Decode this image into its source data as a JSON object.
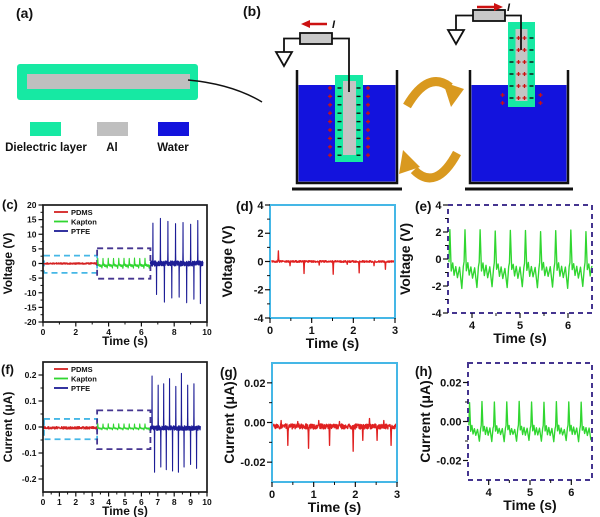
{
  "panel_a": {
    "label": "(a)",
    "legend": [
      {
        "label": "Dielectric layer",
        "color": "#16E9A3"
      },
      {
        "label": "Al",
        "color": "#BFBFBF"
      },
      {
        "label": "Water",
        "color": "#1313DD"
      }
    ]
  },
  "panel_b": {
    "label": "(b)",
    "current_label": "I",
    "colors": {
      "water": "#1313DD",
      "dielectric": "#16E9A3",
      "electrode_core": "#C4C4C4",
      "resistor_fill": "#C8C8C8",
      "cycle_arrow": "#D9991F",
      "current_arrow": "#CC1111",
      "positive_charge": "#CC1111",
      "negative_charge": "#111111",
      "outline": "#111111"
    },
    "left_charge_rows": 9,
    "right_charge_rows": 6,
    "right_submerged_rows": 2
  },
  "chart_data": [
    {
      "id": "c",
      "panel_label": "(c)",
      "type": "line",
      "style": "small",
      "xlabel": "Time (s)",
      "ylabel": "Voltage (V)",
      "xlim": [
        0,
        10
      ],
      "ylim": [
        -20,
        20
      ],
      "xticks": {
        "values": [
          0,
          2,
          4,
          6,
          8,
          10
        ],
        "labels": [
          "0",
          "2",
          "4",
          "6",
          "8",
          "10"
        ]
      },
      "yticks": {
        "values": [
          20,
          15,
          10,
          5,
          0,
          -5,
          -10,
          -15,
          -20
        ],
        "labels": [
          "20",
          "15",
          "10",
          "5",
          "0",
          "-5",
          "-10",
          "-15",
          "-20"
        ]
      },
      "frame": {
        "color": "#1a1a1a",
        "dash": false
      },
      "legend": {
        "entries": [
          {
            "name": "PDMS",
            "color": "#D42222"
          },
          {
            "name": "Kapton",
            "color": "#30D630"
          },
          {
            "name": "PTFE",
            "color": "#1D1D96"
          }
        ]
      },
      "boxes": [
        {
          "x": [
            0.06,
            3.3
          ],
          "y": [
            -3.2,
            2.7
          ],
          "color": "#45B7E6"
        },
        {
          "x": [
            3.3,
            6.55
          ],
          "y": [
            -5.2,
            5.2
          ],
          "color": "#453590"
        }
      ],
      "series": [
        {
          "name": "PDMS",
          "color": "#D42222",
          "gen": {
            "kind": "flat",
            "range": [
              0.04,
              3.28
            ],
            "base": 0,
            "noise": 0.28,
            "n": 300
          }
        },
        {
          "name": "Kapton",
          "color": "#30D630",
          "gen": {
            "kind": "periodic",
            "range": [
              3.32,
              6.52
            ],
            "period": 0.32,
            "up": 1.8,
            "down": 1.6,
            "base": 0
          }
        },
        {
          "name": "PTFE",
          "color": "#1D1D96",
          "gen": {
            "kind": "spikes",
            "range": [
              6.55,
              9.75
            ],
            "base": 0,
            "noise": 0.9,
            "n": 420,
            "spikes": [
              [
                6.7,
                13.8
              ],
              [
                6.92,
                -10.6
              ],
              [
                7.16,
                15.4
              ],
              [
                7.4,
                -13.2
              ],
              [
                7.62,
                14.4
              ],
              [
                7.85,
                -11.8
              ],
              [
                8.08,
                13.6
              ],
              [
                8.3,
                -11.5
              ],
              [
                8.54,
                14.0
              ],
              [
                8.76,
                -13.4
              ],
              [
                9.0,
                13.4
              ],
              [
                9.2,
                -12.2
              ],
              [
                9.44,
                14.7
              ],
              [
                9.6,
                -13.7
              ]
            ]
          }
        }
      ]
    },
    {
      "id": "d",
      "panel_label": "(d)",
      "type": "line",
      "style": "large",
      "xlabel": "Time (s)",
      "ylabel": "Voltage (V)",
      "xlim": [
        0,
        3
      ],
      "ylim": [
        -4,
        4
      ],
      "xticks": {
        "values": [
          0,
          1,
          2,
          3
        ],
        "labels": [
          "0",
          "1",
          "2",
          "3"
        ]
      },
      "yticks": {
        "values": [
          4,
          2,
          0,
          -2,
          -4
        ],
        "labels": [
          "4",
          "2",
          "0",
          "-2",
          "-4"
        ]
      },
      "frame": {
        "color": "#45B7E6",
        "dash": false
      },
      "series": [
        {
          "name": "PDMS",
          "color": "#E02020",
          "gen": {
            "kind": "spikes",
            "range": [
              0.04,
              2.98
            ],
            "base": 0,
            "noise": 0.06,
            "n": 420,
            "spikes": [
              [
                0.2,
                0.75
              ],
              [
                0.48,
                -0.3
              ],
              [
                0.82,
                -0.85
              ],
              [
                1.18,
                -0.25
              ],
              [
                1.52,
                -0.9
              ],
              [
                1.85,
                -0.2
              ],
              [
                2.14,
                -0.8
              ],
              [
                2.5,
                -0.3
              ],
              [
                2.77,
                -0.55
              ]
            ]
          }
        }
      ]
    },
    {
      "id": "e",
      "panel_label": "(e)",
      "type": "line",
      "style": "large",
      "xlabel": "Time (s)",
      "ylabel": "Voltage (V)",
      "xlim": [
        3.5,
        6.5
      ],
      "ylim": [
        -4,
        4
      ],
      "xticks": {
        "values": [
          4,
          5,
          6
        ],
        "labels": [
          "4",
          "5",
          "6"
        ]
      },
      "yticks": {
        "values": [
          4,
          2,
          0,
          -2,
          -4
        ],
        "labels": [
          "4",
          "2",
          "0",
          "-2",
          "-4"
        ]
      },
      "frame": {
        "color": "#453590",
        "dash": true
      },
      "series": [
        {
          "name": "Kapton",
          "color": "#30D630",
          "gen": {
            "kind": "periodic",
            "range": [
              3.52,
              6.5
            ],
            "period": 0.315,
            "up": 2.1,
            "down": 2.1,
            "base": 0
          }
        }
      ]
    },
    {
      "id": "f",
      "panel_label": "(f)",
      "type": "line",
      "style": "small",
      "xlabel": "Time (s)",
      "ylabel": "Current (μA)",
      "xlim": [
        0,
        10
      ],
      "ylim": [
        -0.25,
        0.25
      ],
      "xticks": {
        "values": [
          0,
          1,
          2,
          3,
          4,
          5,
          6,
          7,
          8,
          9,
          10
        ],
        "labels": [
          "0",
          "1",
          "2",
          "3",
          "4",
          "5",
          "6",
          "7",
          "8",
          "9",
          "10"
        ]
      },
      "yticks": {
        "values": [
          0.2,
          0.1,
          0,
          -0.1,
          -0.2
        ],
        "labels": [
          "0.2",
          "0.1",
          "0.0",
          "-0.1",
          "-0.2"
        ]
      },
      "frame": {
        "color": "#1a1a1a",
        "dash": false
      },
      "legend": {
        "entries": [
          {
            "name": "PDMS",
            "color": "#D42222"
          },
          {
            "name": "Kapton",
            "color": "#30D630"
          },
          {
            "name": "PTFE",
            "color": "#1D1D96"
          }
        ]
      },
      "boxes": [
        {
          "x": [
            0.06,
            3.3
          ],
          "y": [
            -0.047,
            0.031
          ],
          "color": "#45B7E6"
        },
        {
          "x": [
            3.3,
            6.55
          ],
          "y": [
            -0.085,
            0.064
          ],
          "color": "#453590"
        }
      ],
      "series": [
        {
          "name": "PDMS",
          "color": "#D42222",
          "gen": {
            "kind": "flat",
            "range": [
              0.04,
              3.28
            ],
            "base": -0.003,
            "noise": 0.005,
            "n": 300
          }
        },
        {
          "name": "Kapton",
          "color": "#30D630",
          "gen": {
            "kind": "periodic",
            "range": [
              3.32,
              6.52
            ],
            "period": 0.32,
            "up": 0.013,
            "down": 0.01,
            "base": -0.001
          }
        },
        {
          "name": "PTFE",
          "color": "#1D1D96",
          "gen": {
            "kind": "spikes",
            "range": [
              6.55,
              9.6
            ],
            "base": -0.004,
            "noise": 0.009,
            "n": 400,
            "spikes": [
              [
                6.65,
                0.2
              ],
              [
                6.8,
                -0.17
              ],
              [
                7.02,
                0.165
              ],
              [
                7.18,
                -0.15
              ],
              [
                7.36,
                0.17
              ],
              [
                7.52,
                -0.16
              ],
              [
                7.72,
                0.19
              ],
              [
                7.9,
                -0.165
              ],
              [
                8.1,
                0.16
              ],
              [
                8.26,
                -0.17
              ],
              [
                8.44,
                0.21
              ],
              [
                8.6,
                -0.15
              ],
              [
                8.82,
                0.165
              ],
              [
                9.0,
                -0.14
              ],
              [
                9.2,
                0.17
              ],
              [
                9.36,
                -0.155
              ]
            ]
          }
        }
      ]
    },
    {
      "id": "g",
      "panel_label": "(g)",
      "type": "line",
      "style": "large",
      "xlabel": "Time (s)",
      "ylabel": "Current (μA)",
      "xlim": [
        0,
        3
      ],
      "ylim": [
        -0.03,
        0.03
      ],
      "xticks": {
        "values": [
          0,
          1,
          2,
          3
        ],
        "labels": [
          "0",
          "1",
          "2",
          "3"
        ]
      },
      "yticks": {
        "values": [
          0.02,
          0,
          -0.02
        ],
        "labels": [
          "0.02",
          "0.00",
          "-0.02"
        ]
      },
      "frame": {
        "color": "#45B7E6",
        "dash": false
      },
      "series": [
        {
          "name": "PDMS",
          "color": "#E02020",
          "gen": {
            "kind": "spikes",
            "range": [
              0.03,
              2.97
            ],
            "base": -0.002,
            "noise": 0.0013,
            "n": 420,
            "spikes": [
              [
                0.22,
                0.003
              ],
              [
                0.38,
                -0.0095
              ],
              [
                0.62,
                0.0025
              ],
              [
                0.88,
                -0.011
              ],
              [
                1.12,
                0.003
              ],
              [
                1.38,
                -0.0095
              ],
              [
                1.62,
                0.0025
              ],
              [
                1.95,
                -0.0125
              ],
              [
                2.18,
                -0.007
              ],
              [
                2.34,
                0.004
              ],
              [
                2.52,
                -0.007
              ],
              [
                2.68,
                0.003
              ],
              [
                2.86,
                -0.0095
              ]
            ]
          }
        }
      ]
    },
    {
      "id": "h",
      "panel_label": "(h)",
      "type": "line",
      "style": "large",
      "xlabel": "Time (s)",
      "ylabel": "Current (μA)",
      "xlim": [
        3.5,
        6.5
      ],
      "ylim": [
        -0.03,
        0.03
      ],
      "xticks": {
        "values": [
          4,
          5,
          6
        ],
        "labels": [
          "4",
          "5",
          "6"
        ]
      },
      "yticks": {
        "values": [
          0.02,
          0,
          -0.02
        ],
        "labels": [
          "0.02",
          "0.00",
          "-0.02"
        ]
      },
      "frame": {
        "color": "#453590",
        "dash": true
      },
      "series": [
        {
          "name": "Kapton",
          "color": "#30D630",
          "gen": {
            "kind": "periodic",
            "range": [
              3.52,
              6.5
            ],
            "period": 0.3,
            "up": 0.011,
            "down": 0.009,
            "base": -0.001
          }
        }
      ]
    }
  ]
}
